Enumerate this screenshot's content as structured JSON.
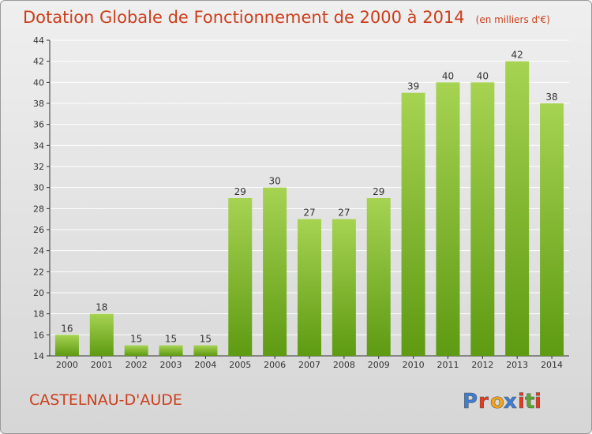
{
  "header": {
    "title": "Dotation Globale de Fonctionnement de 2000 à 2014",
    "unit": "(en milliers d'€)"
  },
  "commune": "CASTELNAU-D'AUDE",
  "logo": {
    "text": "Proxiti",
    "letters": [
      "P",
      "r",
      "o",
      "x",
      "i",
      "t",
      "i"
    ],
    "colors": [
      "#3b7ed8",
      "#e63a1a",
      "#f2a51a",
      "#3b7ed8",
      "#e63a1a",
      "#5aa82c",
      "#e63a1a"
    ]
  },
  "colors": {
    "title": "#cc3e1c",
    "bar_light": "#a6d352",
    "bar_dark": "#5e9a12",
    "grid": "#ffffff"
  },
  "chart_data": {
    "type": "bar",
    "title": "Dotation Globale de Fonctionnement de 2000 à 2014",
    "subtitle": "(en milliers d'€)",
    "categories": [
      "2000",
      "2001",
      "2002",
      "2003",
      "2004",
      "2005",
      "2006",
      "2007",
      "2008",
      "2009",
      "2010",
      "2011",
      "2012",
      "2013",
      "2014"
    ],
    "values": [
      16,
      18,
      15,
      15,
      15,
      29,
      30,
      27,
      27,
      29,
      39,
      40,
      40,
      42,
      38
    ],
    "ylim": [
      14,
      44
    ],
    "yticks": [
      14,
      16,
      18,
      20,
      22,
      24,
      26,
      28,
      30,
      32,
      34,
      36,
      38,
      40,
      42,
      44
    ],
    "grid": true,
    "xlabel": "",
    "ylabel": ""
  }
}
